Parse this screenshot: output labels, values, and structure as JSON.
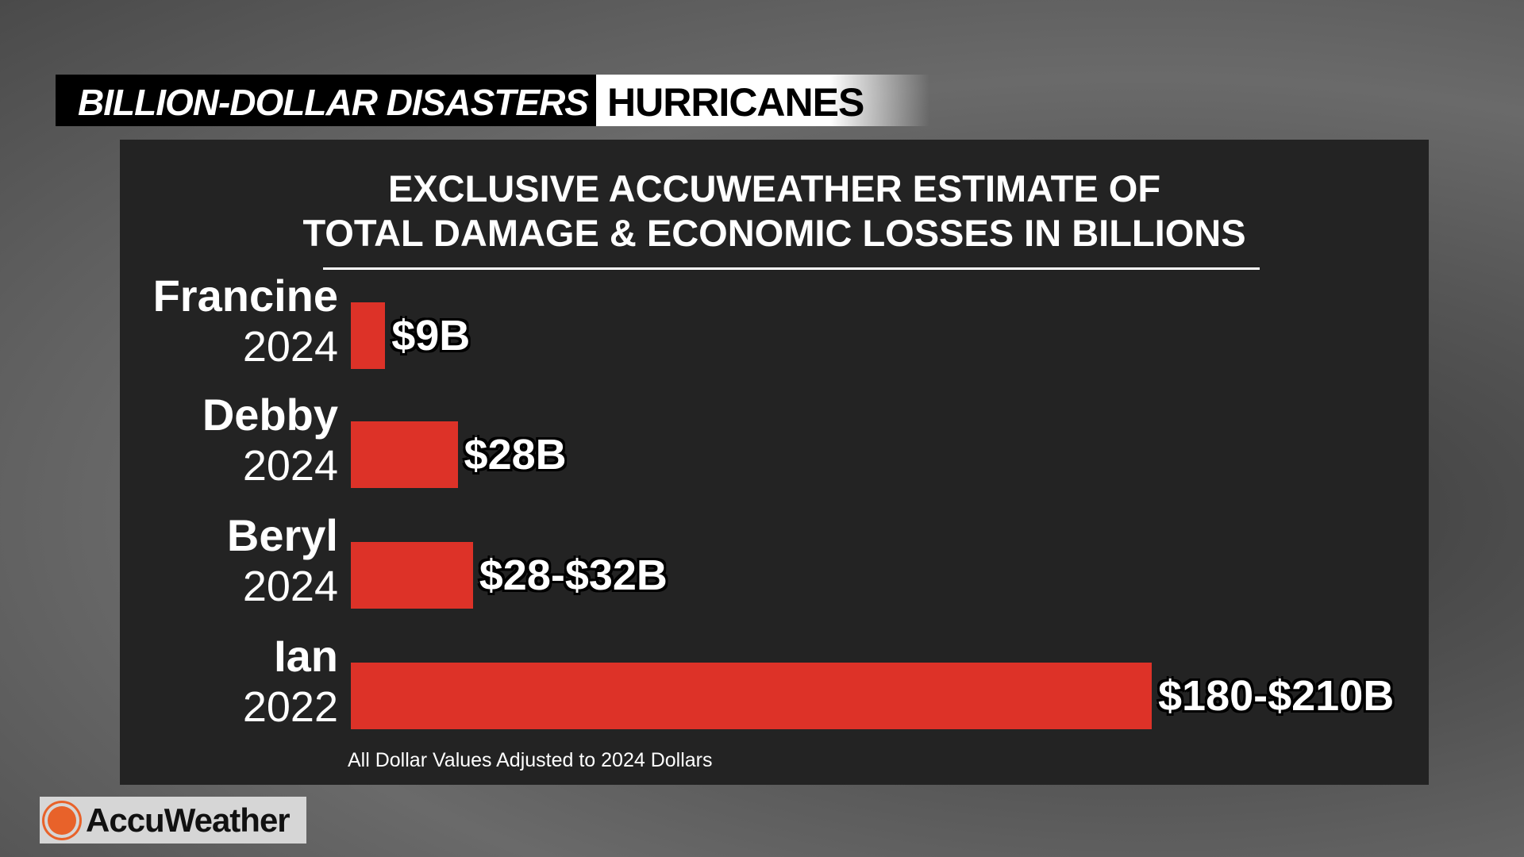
{
  "header": {
    "section": "BILLION-DOLLAR DISASTERS",
    "topic": "HURRICANES"
  },
  "chart_data": {
    "type": "bar",
    "orientation": "horizontal",
    "title": [
      "EXCLUSIVE ACCUWEATHER ESTIMATE OF",
      "TOTAL DAMAGE & ECONOMIC LOSSES IN BILLIONS"
    ],
    "categories": [
      {
        "name": "Francine",
        "year": "2024"
      },
      {
        "name": "Debby",
        "year": "2024"
      },
      {
        "name": "Beryl",
        "year": "2024"
      },
      {
        "name": "Ian",
        "year": "2022"
      }
    ],
    "values": [
      9,
      28,
      32,
      210
    ],
    "value_labels": [
      "$9B",
      "$28B",
      "$28-$32B",
      "$180-$210B"
    ],
    "xlim": [
      0,
      210
    ],
    "unit": "billions USD",
    "footnote": "All Dollar Values Adjusted to 2024 Dollars",
    "bar_color": "#dd3228"
  },
  "logo": {
    "text": "AccuWeather"
  }
}
